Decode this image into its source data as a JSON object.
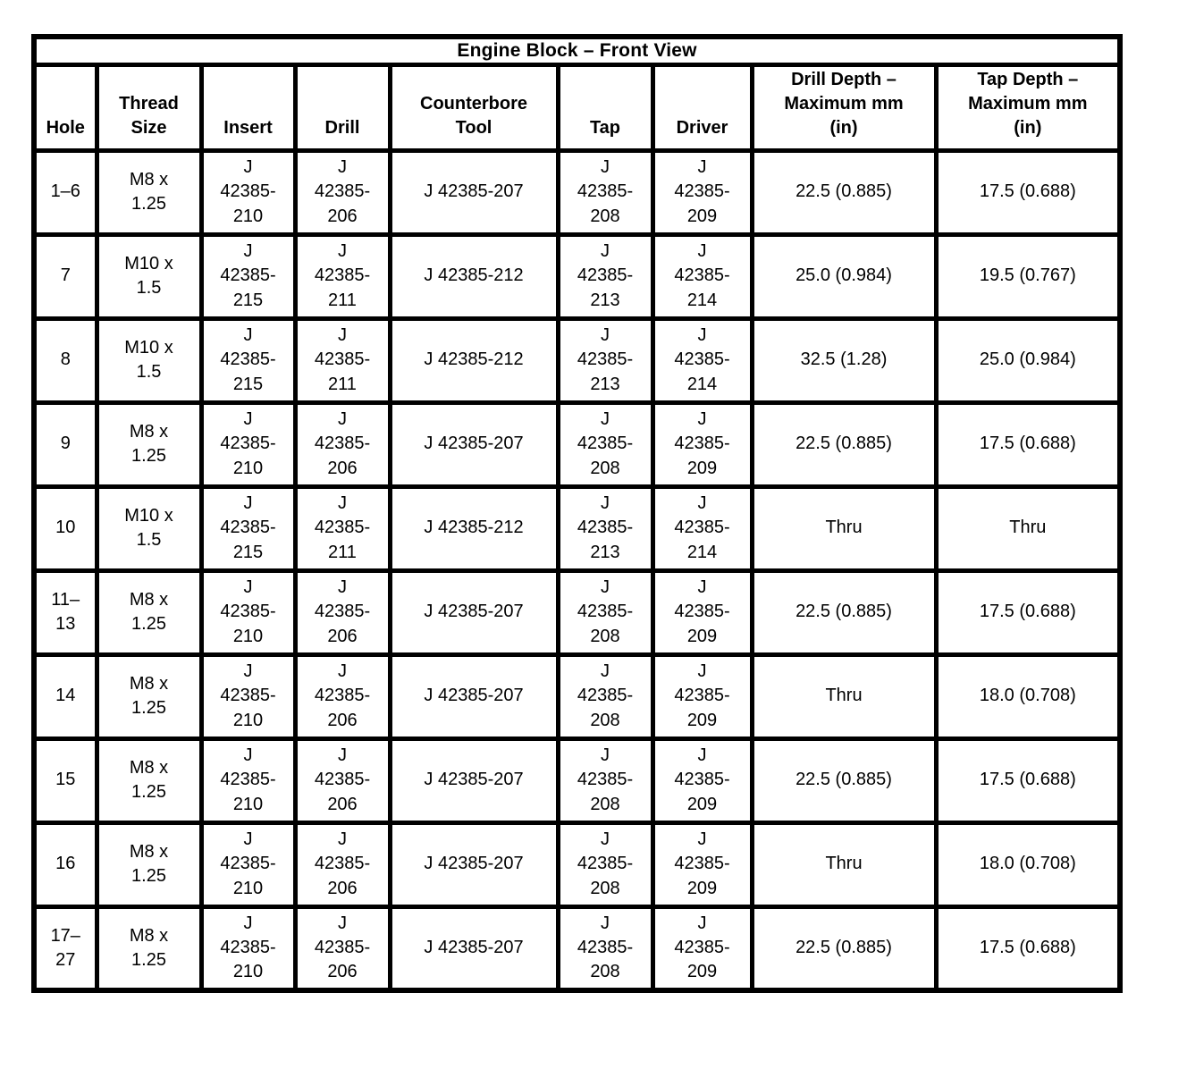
{
  "title": "Engine Block – Front View",
  "table": {
    "columns": [
      {
        "key": "hole",
        "label": "Hole"
      },
      {
        "key": "thread_size",
        "label": "Thread Size"
      },
      {
        "key": "insert",
        "label": "Insert"
      },
      {
        "key": "drill",
        "label": "Drill"
      },
      {
        "key": "counterbore_tool",
        "label": "Counterbore Tool"
      },
      {
        "key": "tap",
        "label": "Tap"
      },
      {
        "key": "driver",
        "label": "Driver"
      },
      {
        "key": "drill_depth",
        "label": "Drill Depth – Maximum mm (in)"
      },
      {
        "key": "tap_depth",
        "label": "Tap Depth – Maximum mm (in)"
      }
    ],
    "rows": [
      [
        "1–6",
        "M8 x 1.25",
        "J 42385-210",
        "J 42385-206",
        "J 42385-207",
        "J 42385-208",
        "J 42385-209",
        "22.5 (0.885)",
        "17.5 (0.688)"
      ],
      [
        "7",
        "M10 x 1.5",
        "J 42385-215",
        "J 42385-211",
        "J 42385-212",
        "J 42385-213",
        "J 42385-214",
        "25.0 (0.984)",
        "19.5 (0.767)"
      ],
      [
        "8",
        "M10 x 1.5",
        "J 42385-215",
        "J 42385-211",
        "J 42385-212",
        "J 42385-213",
        "J 42385-214",
        "32.5 (1.28)",
        "25.0 (0.984)"
      ],
      [
        "9",
        "M8 x 1.25",
        "J 42385-210",
        "J 42385-206",
        "J 42385-207",
        "J 42385-208",
        "J 42385-209",
        "22.5 (0.885)",
        "17.5 (0.688)"
      ],
      [
        "10",
        "M10 x 1.5",
        "J 42385-215",
        "J 42385-211",
        "J 42385-212",
        "J 42385-213",
        "J 42385-214",
        "Thru",
        "Thru"
      ],
      [
        "11–13",
        "M8 x 1.25",
        "J 42385-210",
        "J 42385-206",
        "J 42385-207",
        "J 42385-208",
        "J 42385-209",
        "22.5 (0.885)",
        "17.5 (0.688)"
      ],
      [
        "14",
        "M8 x 1.25",
        "J 42385-210",
        "J 42385-206",
        "J 42385-207",
        "J 42385-208",
        "J 42385-209",
        "Thru",
        "18.0 (0.708)"
      ],
      [
        "15",
        "M8 x 1.25",
        "J 42385-210",
        "J 42385-206",
        "J 42385-207",
        "J 42385-208",
        "J 42385-209",
        "22.5 (0.885)",
        "17.5 (0.688)"
      ],
      [
        "16",
        "M8 x 1.25",
        "J 42385-210",
        "J 42385-206",
        "J 42385-207",
        "J 42385-208",
        "J 42385-209",
        "Thru",
        "18.0 (0.708)"
      ],
      [
        "17–27",
        "M8 x 1.25",
        "J 42385-210",
        "J 42385-206",
        "J 42385-207",
        "J 42385-208",
        "J 42385-209",
        "22.5 (0.885)",
        "17.5 (0.688)"
      ]
    ]
  },
  "colors": {
    "border": "#000000",
    "text": "#000000",
    "background": "#ffffff"
  }
}
